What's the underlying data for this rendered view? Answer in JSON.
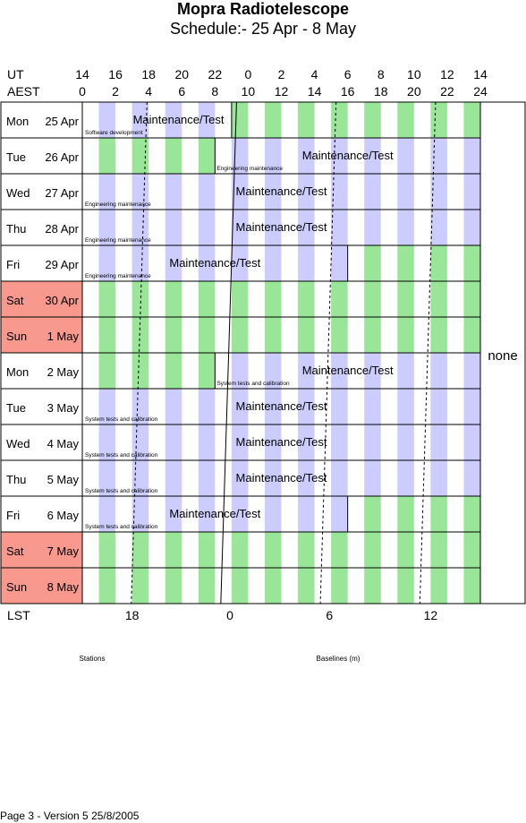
{
  "title": "Mopra Radiotelescope",
  "subtitle": "Schedule:- 25 Apr - 8  May",
  "ut_label": "UT",
  "aest_label": "AEST",
  "ut_ticks": [
    "14",
    "16",
    "18",
    "20",
    "22",
    "0",
    "2",
    "4",
    "6",
    "8",
    "10",
    "12",
    "14"
  ],
  "aest_ticks": [
    "0",
    "2",
    "4",
    "6",
    "8",
    "10",
    "12",
    "14",
    "16",
    "18",
    "20",
    "22",
    "24"
  ],
  "lst_label": "LST",
  "lst_ticks": [
    "18",
    "0",
    "6",
    "12"
  ],
  "legend": {
    "stations": "Stations",
    "baselines": "Baselines (m)"
  },
  "side_note": "none",
  "footer": "Page 3 - Version 5  25/8/2005",
  "colors": {
    "weekend": "#f9998d",
    "purple": "#ccccff",
    "green": "#99e699"
  },
  "days": [
    {
      "day": "Mon",
      "date": "25 Apr",
      "weekend": false,
      "split": 9,
      "left_note": "Software development",
      "right_label": "Maintenance/Test",
      "pattern": "maint_am"
    },
    {
      "day": "Tue",
      "date": "26 Apr",
      "weekend": false,
      "split": 8,
      "left_note": "Engineering maintenance",
      "right_label": "Maintenance/Test",
      "pattern": "maint_pm"
    },
    {
      "day": "Wed",
      "date": "27 Apr",
      "weekend": false,
      "split": null,
      "left_note": "Engineering maintenance",
      "right_label": "Maintenance/Test",
      "pattern": "maint_full"
    },
    {
      "day": "Thu",
      "date": "28 Apr",
      "weekend": false,
      "split": null,
      "left_note": "Engineering maintenance",
      "right_label": "Maintenance/Test",
      "pattern": "maint_full"
    },
    {
      "day": "Fri",
      "date": "29 Apr",
      "weekend": false,
      "split": 16,
      "left_note": "Engineering maintenance",
      "right_label": "Maintenance/Test",
      "pattern": "maint_fri"
    },
    {
      "day": "Sat",
      "date": "30 Apr",
      "weekend": true,
      "split": null,
      "left_note": "",
      "right_label": "",
      "pattern": "free"
    },
    {
      "day": "Sun",
      "date": "1  May",
      "weekend": true,
      "split": null,
      "left_note": "",
      "right_label": "",
      "pattern": "free"
    },
    {
      "day": "Mon",
      "date": "2  May",
      "weekend": false,
      "split": 8,
      "left_note": "System tests and calibration",
      "right_label": "Maintenance/Test",
      "pattern": "maint_pm"
    },
    {
      "day": "Tue",
      "date": "3  May",
      "weekend": false,
      "split": null,
      "left_note": "System tests and calibration",
      "right_label": "Maintenance/Test",
      "pattern": "maint_full"
    },
    {
      "day": "Wed",
      "date": "4  May",
      "weekend": false,
      "split": null,
      "left_note": "System tests and calibration",
      "right_label": "Maintenance/Test",
      "pattern": "maint_full"
    },
    {
      "day": "Thu",
      "date": "5  May",
      "weekend": false,
      "split": null,
      "left_note": "System tests and calibration",
      "right_label": "Maintenance/Test",
      "pattern": "maint_full"
    },
    {
      "day": "Fri",
      "date": "6  May",
      "weekend": false,
      "split": 16,
      "left_note": "System tests and calibration",
      "right_label": "Maintenance/Test",
      "pattern": "maint_fri"
    },
    {
      "day": "Sat",
      "date": "7  May",
      "weekend": true,
      "split": null,
      "left_note": "",
      "right_label": "",
      "pattern": "free"
    },
    {
      "day": "Sun",
      "date": "8  May",
      "weekend": true,
      "split": null,
      "left_note": "",
      "right_label": "",
      "pattern": "free"
    }
  ]
}
